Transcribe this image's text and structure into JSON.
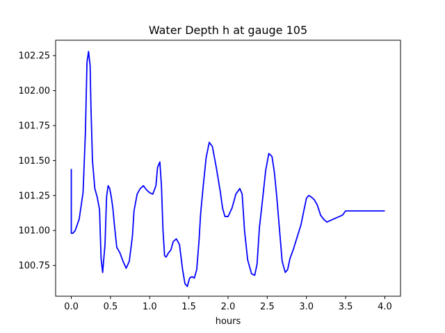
{
  "chart_data": {
    "type": "line",
    "title": "Water Depth h at gauge 105",
    "xlabel": "hours",
    "ylabel": "",
    "xlim": [
      -0.2,
      4.2
    ],
    "ylim": [
      100.53,
      102.36
    ],
    "x_ticks": [
      "0.0",
      "0.5",
      "1.0",
      "1.5",
      "2.0",
      "2.5",
      "3.0",
      "3.5",
      "4.0"
    ],
    "y_ticks": [
      "100.75",
      "101.00",
      "101.25",
      "101.50",
      "101.75",
      "102.00",
      "102.25"
    ],
    "grid": false,
    "legend": "none",
    "series": [
      {
        "color": "#0000ff",
        "x": [
          0.0,
          0.0,
          0.02,
          0.05,
          0.1,
          0.15,
          0.18,
          0.2,
          0.22,
          0.24,
          0.25,
          0.27,
          0.3,
          0.33,
          0.36,
          0.38,
          0.4,
          0.43,
          0.45,
          0.47,
          0.49,
          0.51,
          0.53,
          0.55,
          0.58,
          0.62,
          0.66,
          0.7,
          0.74,
          0.78,
          0.8,
          0.84,
          0.88,
          0.92,
          0.96,
          1.0,
          1.04,
          1.08,
          1.1,
          1.13,
          1.15,
          1.17,
          1.19,
          1.21,
          1.24,
          1.27,
          1.3,
          1.34,
          1.38,
          1.42,
          1.45,
          1.48,
          1.51,
          1.54,
          1.57,
          1.6,
          1.63,
          1.65,
          1.68,
          1.72,
          1.76,
          1.8,
          1.85,
          1.9,
          1.93,
          1.96,
          2.0,
          2.05,
          2.1,
          2.15,
          2.18,
          2.21,
          2.25,
          2.3,
          2.34,
          2.37,
          2.4,
          2.44,
          2.48,
          2.52,
          2.56,
          2.59,
          2.62,
          2.65,
          2.69,
          2.73,
          2.76,
          2.79,
          2.83,
          2.88,
          2.93,
          2.97,
          3.0,
          3.03,
          3.06,
          3.1,
          3.14,
          3.18,
          3.22,
          3.26,
          3.3,
          3.34,
          3.38,
          3.42,
          3.46,
          3.5,
          3.54,
          3.58,
          3.62,
          3.66,
          3.7,
          3.75,
          3.8,
          3.85,
          3.9,
          3.95,
          4.0
        ],
        "y": [
          101.44,
          100.98,
          100.98,
          101.0,
          101.08,
          101.27,
          101.7,
          102.2,
          102.28,
          102.18,
          101.9,
          101.5,
          101.3,
          101.24,
          101.15,
          100.8,
          100.7,
          100.9,
          101.24,
          101.32,
          101.3,
          101.24,
          101.16,
          101.04,
          100.88,
          100.84,
          100.78,
          100.73,
          100.78,
          100.96,
          101.14,
          101.26,
          101.3,
          101.32,
          101.29,
          101.27,
          101.26,
          101.32,
          101.45,
          101.49,
          101.32,
          101.0,
          100.82,
          100.81,
          100.84,
          100.86,
          100.92,
          100.94,
          100.9,
          100.72,
          100.62,
          100.6,
          100.66,
          100.67,
          100.66,
          100.72,
          100.93,
          101.12,
          101.3,
          101.52,
          101.63,
          101.6,
          101.45,
          101.28,
          101.16,
          101.1,
          101.1,
          101.16,
          101.26,
          101.3,
          101.26,
          101.0,
          100.79,
          100.69,
          100.68,
          100.76,
          101.02,
          101.22,
          101.43,
          101.55,
          101.53,
          101.42,
          101.25,
          101.05,
          100.78,
          100.7,
          100.72,
          100.8,
          100.86,
          100.95,
          101.04,
          101.15,
          101.23,
          101.25,
          101.24,
          101.22,
          101.18,
          101.11,
          101.08,
          101.06,
          101.07,
          101.08,
          101.09,
          101.1,
          101.11,
          101.14,
          101.14,
          101.14,
          101.14,
          101.14,
          101.14,
          101.14,
          101.14,
          101.14,
          101.14,
          101.14,
          101.14
        ]
      }
    ]
  }
}
